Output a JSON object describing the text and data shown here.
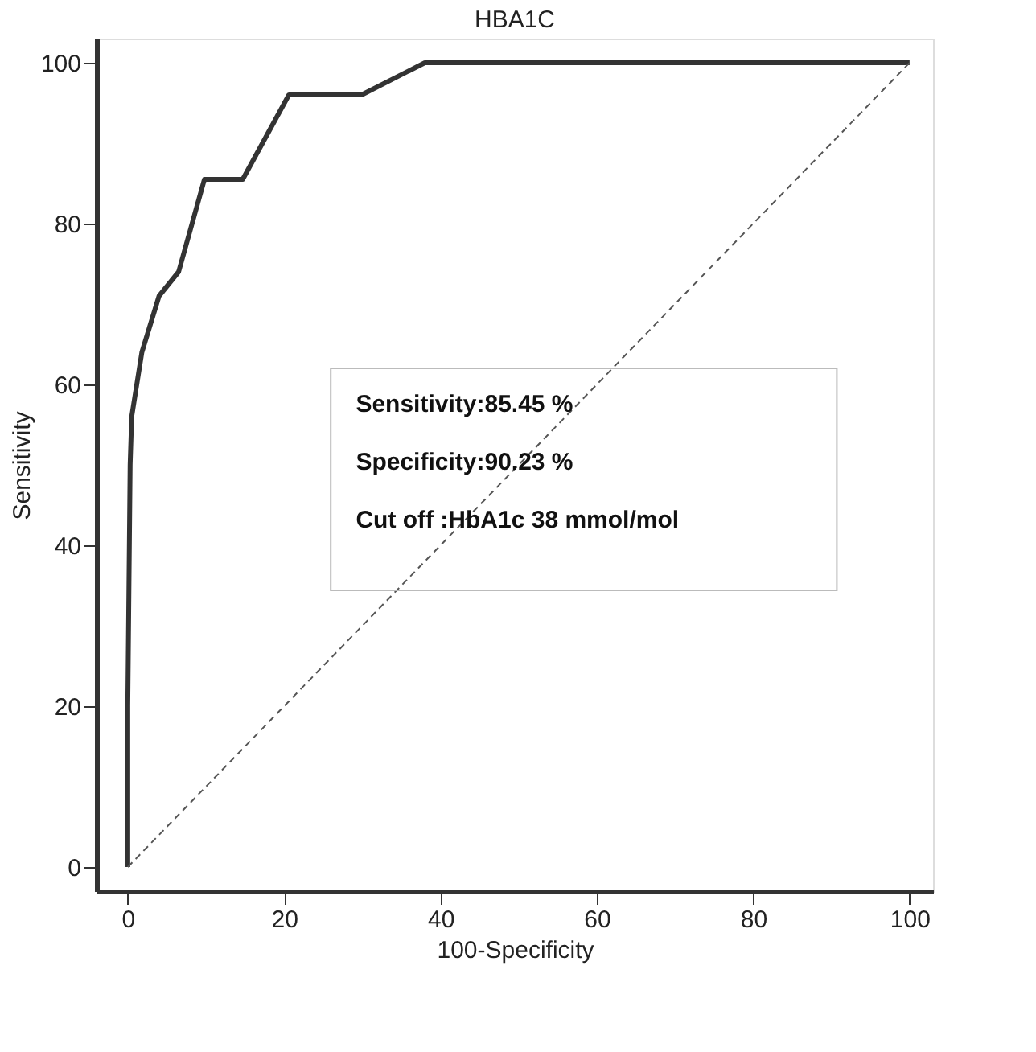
{
  "chart_data": {
    "type": "line",
    "title": "HBA1C",
    "xlabel": "100-Specificity",
    "ylabel": "Sensitivity",
    "xlim": [
      -4,
      103
    ],
    "ylim": [
      -3,
      103
    ],
    "xticks": [
      0,
      20,
      40,
      60,
      80,
      100
    ],
    "yticks": [
      0,
      20,
      40,
      60,
      80,
      100
    ],
    "grid": false,
    "marker": "none",
    "series": [
      {
        "color": "#333333",
        "line_style": "solid",
        "x": [
          0,
          0,
          0.3,
          0.5,
          1.8,
          4,
          6.5,
          9.8,
          14.7,
          20.6,
          29.9,
          38,
          100
        ],
        "values": [
          0,
          20,
          50,
          56,
          64,
          71,
          74,
          85.5,
          85.5,
          96,
          96,
          100,
          100
        ]
      },
      {
        "color": "#555555",
        "line_style": "dashed",
        "x": [
          0,
          100
        ],
        "values": [
          0,
          100
        ]
      }
    ],
    "annotations": [
      "Sensitivity:85.45 %",
      "Specificity:90.23 %",
      "Cut off :HbA1c 38 mmol/mol"
    ]
  }
}
